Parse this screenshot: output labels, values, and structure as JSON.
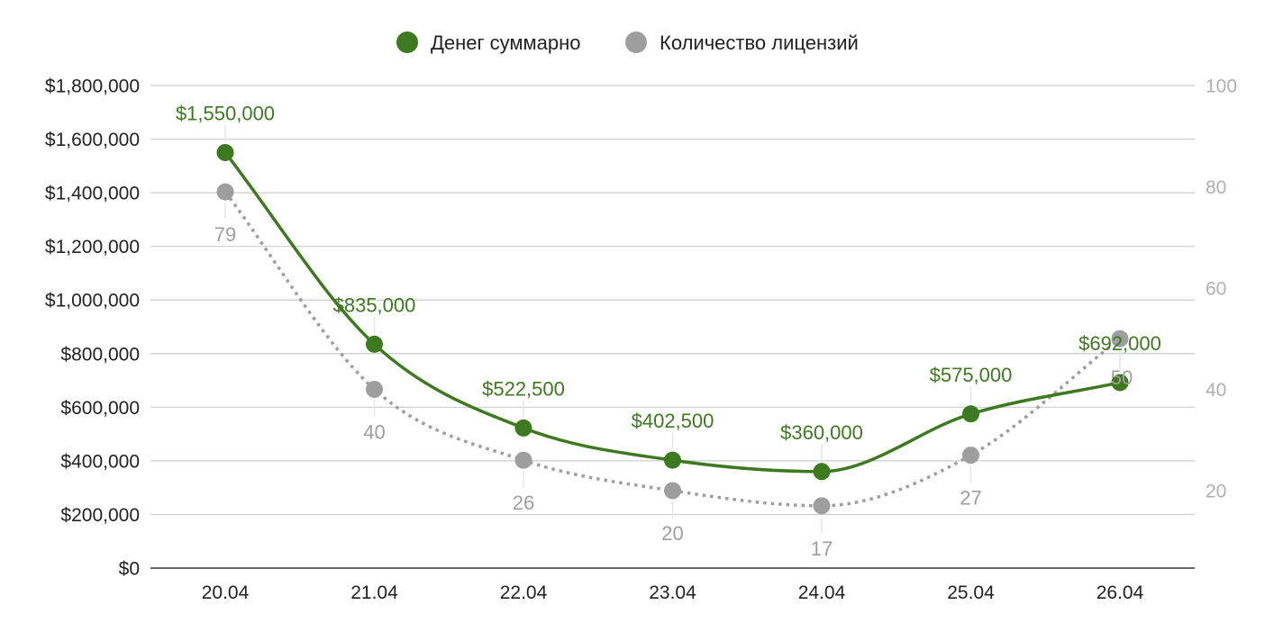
{
  "chart_data": {
    "type": "line",
    "title": "",
    "categories": [
      "20.04",
      "21.04",
      "22.04",
      "23.04",
      "24.04",
      "25.04",
      "26.04"
    ],
    "series": [
      {
        "name": "Денег суммарно",
        "axis": "left",
        "color": "#3d7a1f",
        "line_style": "solid",
        "smooth": true,
        "values": [
          1550000,
          835000,
          522500,
          402500,
          360000,
          575000,
          692000
        ],
        "data_labels": [
          "$1,550,000",
          "$835,000",
          "$522,500",
          "$402,500",
          "$360,000",
          "$575,000",
          "$692,000"
        ]
      },
      {
        "name": "Количество лицензий",
        "axis": "right",
        "color": "#9e9e9e",
        "line_style": "dotted",
        "smooth": true,
        "values": [
          79,
          40,
          26,
          20,
          17,
          27,
          50
        ],
        "data_labels": [
          "79",
          "40",
          "26",
          "20",
          "17",
          "27",
          "50"
        ]
      }
    ],
    "y_left": {
      "ylim": [
        0,
        1800000
      ],
      "ticks": [
        0,
        200000,
        400000,
        600000,
        800000,
        1000000,
        1200000,
        1400000,
        1600000,
        1800000
      ],
      "tick_labels": [
        "$0",
        "$200,000",
        "$400,000",
        "$600,000",
        "$800,000",
        "$1,000,000",
        "$1,200,000",
        "$1,400,000",
        "$1,600,000",
        "$1,800,000"
      ]
    },
    "y_right": {
      "ylim": [
        4.7,
        100
      ],
      "ticks": [
        20,
        40,
        60,
        80,
        100
      ],
      "tick_labels": [
        "20",
        "40",
        "60",
        "80",
        "100"
      ]
    },
    "grid": true,
    "legend": "top-center"
  }
}
